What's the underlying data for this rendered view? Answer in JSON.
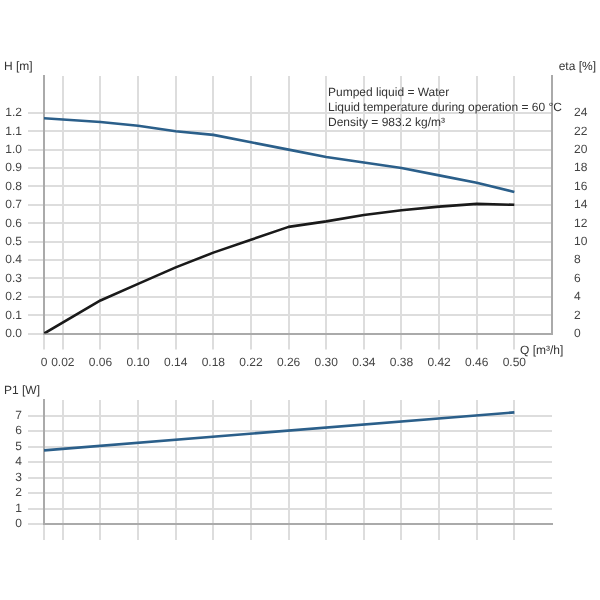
{
  "chart_data": [
    {
      "type": "line",
      "xlabel": "Q [m³/h]",
      "ylabel": "H [m]",
      "y2label": "eta [%]",
      "annotations": [
        "Pumped liquid = Water",
        "Liquid temperature during operation = 60 °C",
        "Density = 983.2 kg/m³"
      ],
      "x": [
        0,
        0.06,
        0.1,
        0.14,
        0.18,
        0.22,
        0.26,
        0.3,
        0.34,
        0.38,
        0.42,
        0.46,
        0.5
      ],
      "series": [
        {
          "color": "#2b5f8a",
          "values": [
            1.17,
            1.15,
            1.13,
            1.1,
            1.08,
            1.04,
            1.0,
            0.96,
            0.93,
            0.9,
            0.86,
            0.82,
            0.77
          ]
        },
        {
          "color": "#1a1a1a",
          "axis": "y2",
          "values": [
            0,
            3.6,
            5.4,
            7.2,
            8.8,
            10.2,
            11.6,
            12.2,
            12.9,
            13.4,
            13.8,
            14.1,
            14.0
          ]
        }
      ],
      "xlim": [
        0,
        0.54
      ],
      "xticks": [
        0,
        0.02,
        0.06,
        {
          "value": 0.1,
          "label": "0.10"
        },
        0.14,
        0.18,
        0.22,
        0.26,
        {
          "value": 0.3,
          "label": "0.30"
        },
        0.34,
        0.38,
        0.42,
        0.46,
        {
          "value": 0.5,
          "label": "0.50"
        }
      ],
      "ylim": [
        0,
        1.4
      ],
      "yticks": [
        {
          "value": 0,
          "label": "0.0"
        },
        0.1,
        0.2,
        0.3,
        0.4,
        0.5,
        0.6,
        0.7,
        0.8,
        0.9,
        {
          "value": 1,
          "label": "1.0"
        },
        1.1,
        1.2
      ],
      "y2lim": [
        0,
        28
      ],
      "y2ticks": [
        0,
        2,
        4,
        6,
        8,
        10,
        12,
        14,
        16,
        18,
        20,
        22,
        24
      ],
      "grid": true,
      "legend": false,
      "marker": "none",
      "line_style": "solid"
    },
    {
      "type": "line",
      "ylabel": "P1 [W]",
      "x": [
        0,
        0.5
      ],
      "series": [
        {
          "color": "#2b5f8a",
          "values": [
            4.75,
            7.2
          ]
        }
      ],
      "xlim": [
        0,
        0.54
      ],
      "xticks": [
        0,
        0.02,
        0.06,
        0.1,
        0.14,
        0.18,
        0.22,
        0.26,
        0.3,
        0.34,
        0.38,
        0.42,
        0.46,
        0.5
      ],
      "ylim": [
        0,
        8
      ],
      "yticks": [
        0,
        1,
        2,
        3,
        4,
        5,
        6,
        7
      ],
      "tick_labels": "y",
      "grid": true,
      "legend": false,
      "marker": "none",
      "line_style": "solid"
    }
  ]
}
